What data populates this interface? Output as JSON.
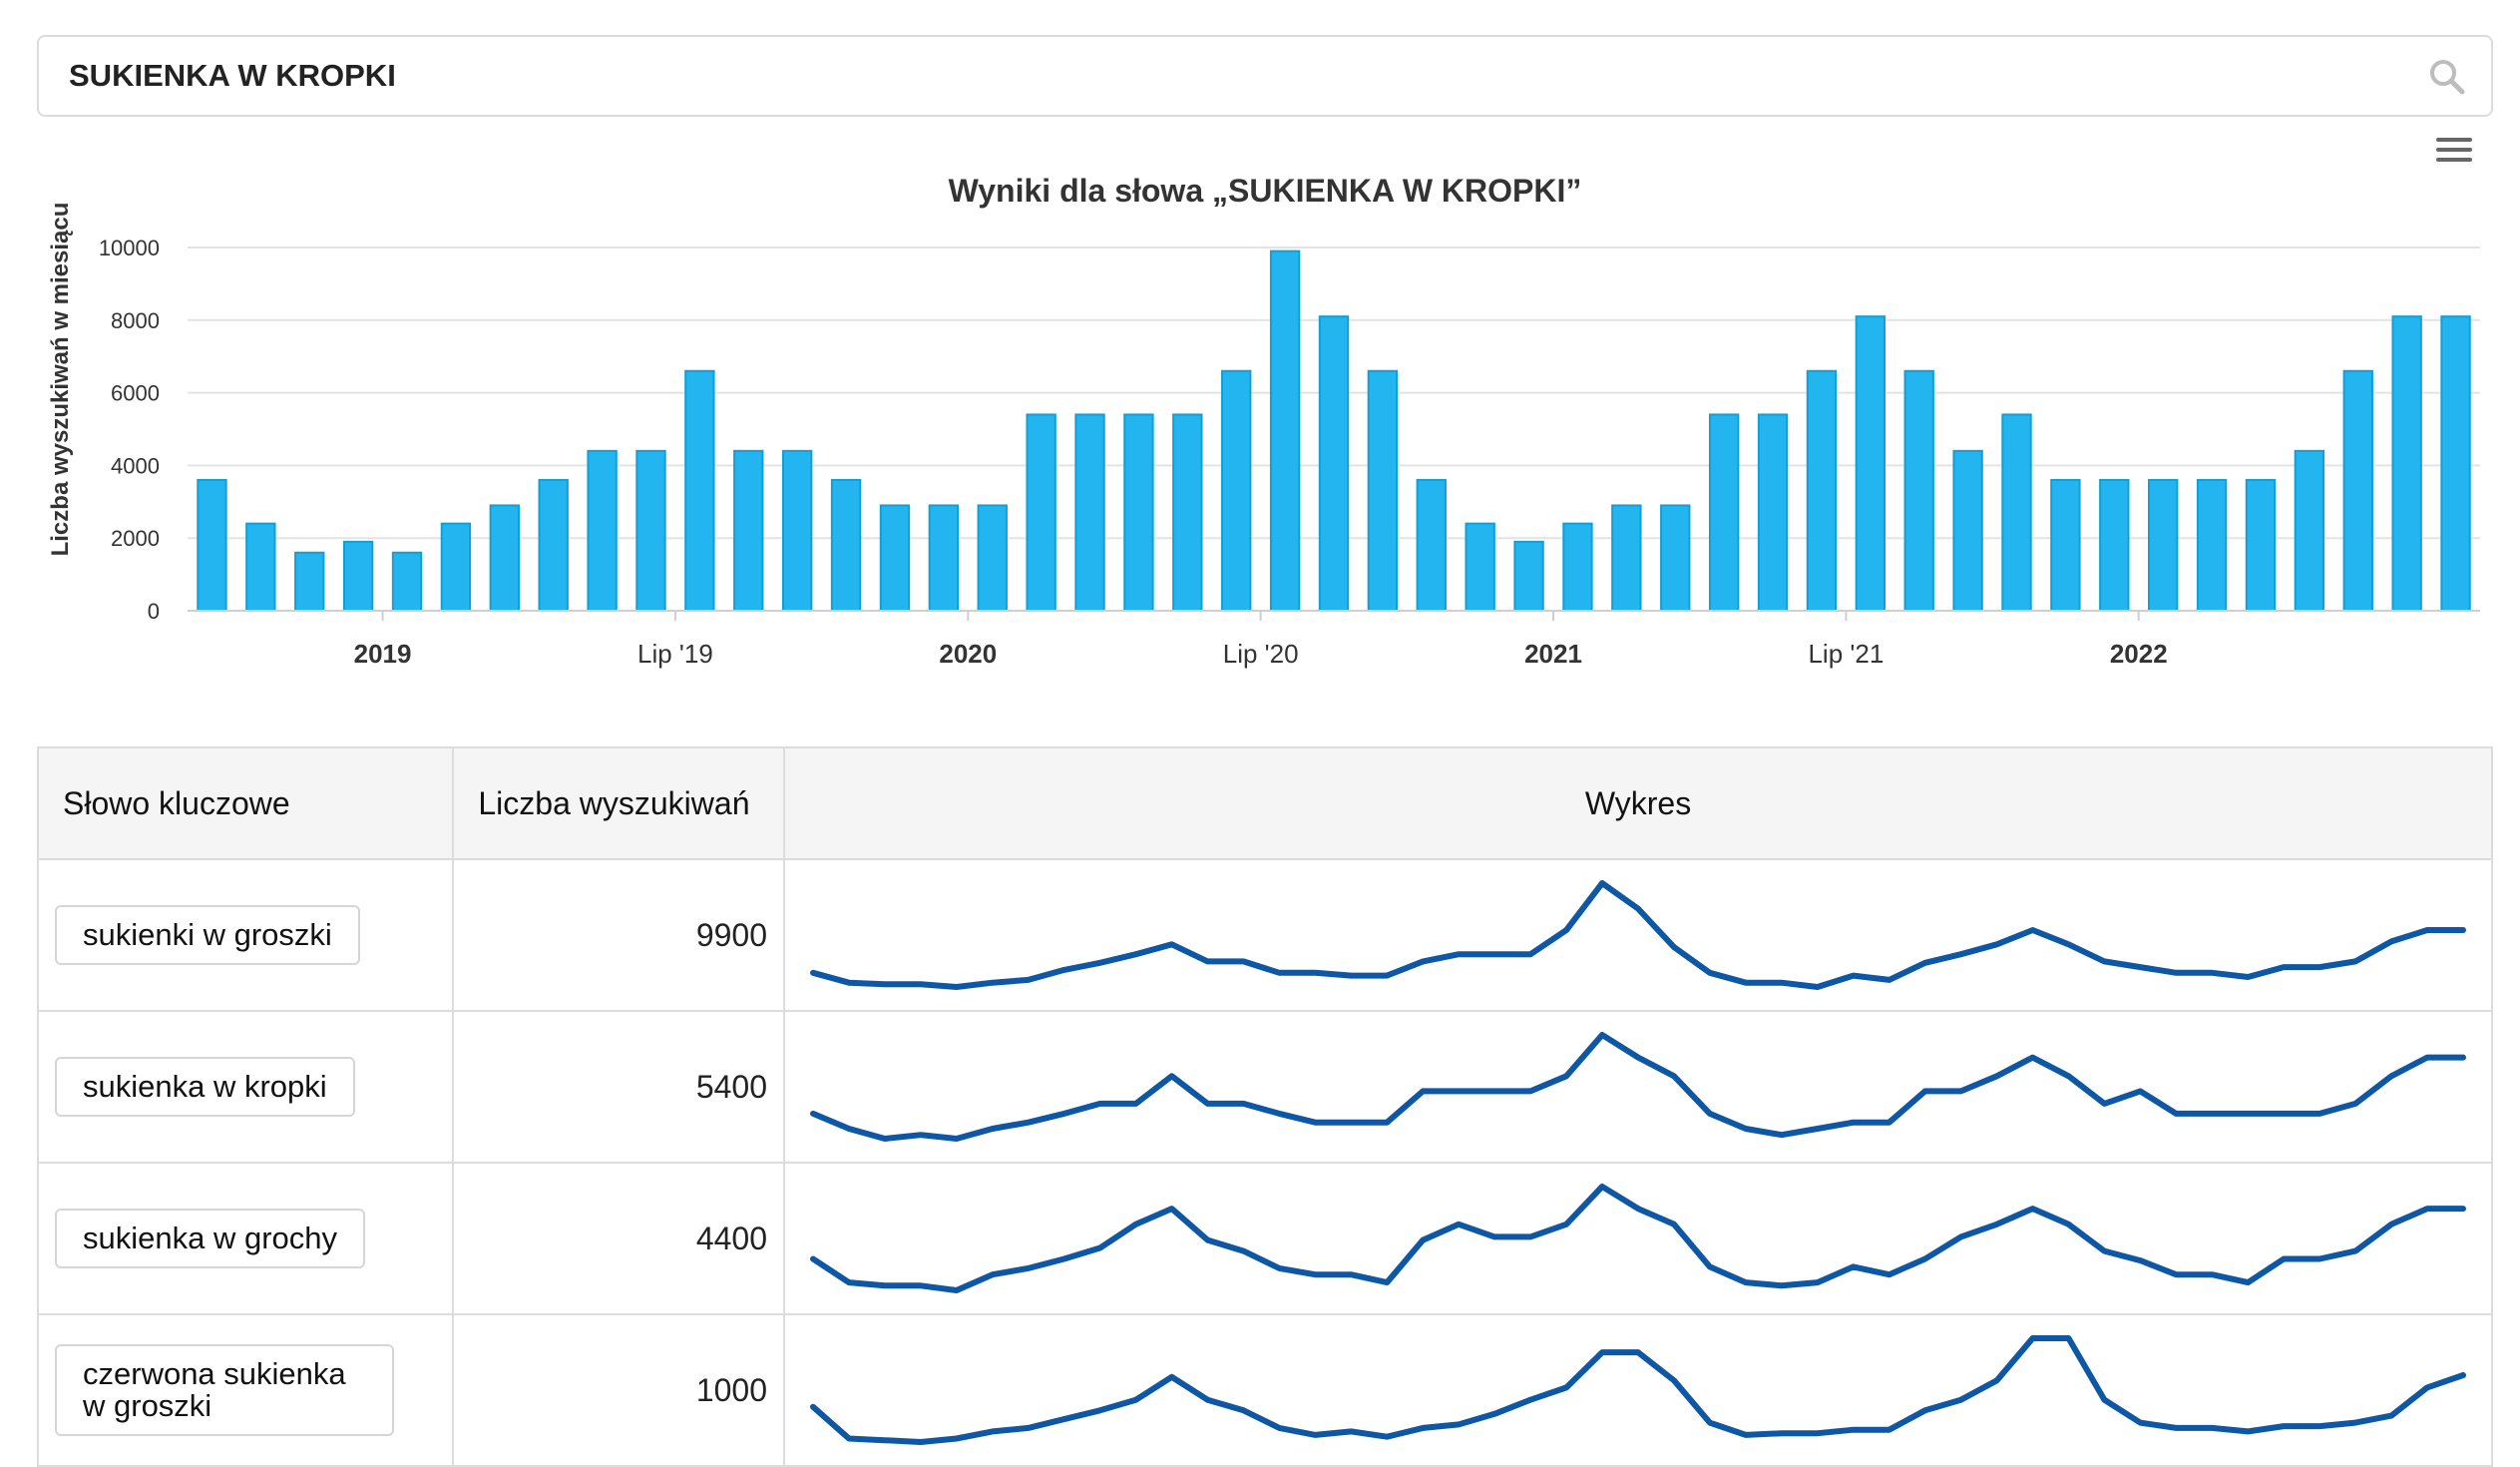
{
  "search": {
    "value": "SUKIENKA W KROPKI"
  },
  "chart_data": {
    "type": "bar",
    "title": "Wyniki dla słowa „SUKIENKA W KROPKI”",
    "ylabel": "Liczba wyszukiwań w miesiącu",
    "xlabel": "",
    "ylim": [
      0,
      10000
    ],
    "yticks": [
      0,
      2000,
      4000,
      6000,
      8000,
      10000
    ],
    "color": "#22b5f0",
    "months": [
      "2018-09",
      "2018-10",
      "2018-11",
      "2018-12",
      "2019-01",
      "2019-02",
      "2019-03",
      "2019-04",
      "2019-05",
      "2019-06",
      "2019-07",
      "2019-08",
      "2019-09",
      "2019-10",
      "2019-11",
      "2019-12",
      "2020-01",
      "2020-02",
      "2020-03",
      "2020-04",
      "2020-05",
      "2020-06",
      "2020-07",
      "2020-08",
      "2020-09",
      "2020-10",
      "2020-11",
      "2020-12",
      "2021-01",
      "2021-02",
      "2021-03",
      "2021-04",
      "2021-05",
      "2021-06",
      "2021-07",
      "2021-08",
      "2021-09",
      "2021-10",
      "2021-11",
      "2021-12",
      "2022-01",
      "2022-02",
      "2022-03",
      "2022-04",
      "2022-05",
      "2022-06",
      "2022-07"
    ],
    "values": [
      3600,
      2400,
      1600,
      1900,
      1600,
      2400,
      2900,
      3600,
      4400,
      4400,
      6600,
      4400,
      4400,
      3600,
      2900,
      2900,
      2900,
      5400,
      5400,
      5400,
      5400,
      6600,
      9900,
      8100,
      6600,
      3600,
      2400,
      1900,
      2400,
      2900,
      2900,
      5400,
      5400,
      6600,
      8100,
      6600,
      4400,
      5400,
      3600,
      3600,
      3600,
      3600,
      3600,
      4400,
      6600,
      8100,
      8100
    ],
    "xtick_labels": [
      {
        "month": "2019-01",
        "label": "2019",
        "bold": true
      },
      {
        "month": "2019-07",
        "label": "Lip '19",
        "bold": false
      },
      {
        "month": "2020-01",
        "label": "2020",
        "bold": true
      },
      {
        "month": "2020-07",
        "label": "Lip '20",
        "bold": false
      },
      {
        "month": "2021-01",
        "label": "2021",
        "bold": true
      },
      {
        "month": "2021-07",
        "label": "Lip '21",
        "bold": false
      },
      {
        "month": "2022-01",
        "label": "2022",
        "bold": true
      }
    ]
  },
  "table": {
    "headers": {
      "keyword": "Słowo kluczowe",
      "count": "Liczba wyszukiwań",
      "chart": "Wykres"
    },
    "line_color": "#0d57a5",
    "rows": [
      {
        "keyword": "sukienki w groszki",
        "count": "9900",
        "trend": [
          3600,
          2900,
          2800,
          2800,
          2600,
          2900,
          3100,
          3800,
          4300,
          4900,
          5600,
          4400,
          4400,
          3600,
          3600,
          3400,
          3400,
          4400,
          4900,
          4900,
          4900,
          6600,
          9900,
          8100,
          5400,
          3600,
          2900,
          2900,
          2600,
          3400,
          3100,
          4300,
          4900,
          5600,
          6600,
          5600,
          4400,
          4000,
          3600,
          3600,
          3300,
          4000,
          4000,
          4400,
          5800,
          6600,
          6600
        ]
      },
      {
        "keyword": "sukienka w kropki",
        "count": "5400",
        "trend": [
          3600,
          2400,
          1600,
          1900,
          1600,
          2400,
          2900,
          3600,
          4400,
          4400,
          6600,
          4400,
          4400,
          3600,
          2900,
          2900,
          2900,
          5400,
          5400,
          5400,
          5400,
          6600,
          9900,
          8100,
          6600,
          3600,
          2400,
          1900,
          2400,
          2900,
          2900,
          5400,
          5400,
          6600,
          8100,
          6600,
          4400,
          5400,
          3600,
          3600,
          3600,
          3600,
          3600,
          4400,
          6600,
          8100,
          8100
        ]
      },
      {
        "keyword": "sukienka w grochy",
        "count": "4400",
        "trend": [
          4400,
          2900,
          2700,
          2700,
          2400,
          3400,
          3800,
          4400,
          5100,
          6600,
          7600,
          5600,
          4900,
          3800,
          3400,
          3400,
          2900,
          5600,
          6600,
          5800,
          5800,
          6600,
          9000,
          7600,
          6600,
          3900,
          2900,
          2700,
          2900,
          3900,
          3400,
          4400,
          5800,
          6600,
          7600,
          6600,
          4900,
          4300,
          3400,
          3400,
          2900,
          4400,
          4400,
          4900,
          6600,
          7600,
          7600
        ]
      },
      {
        "keyword": "czerwona sukienka w groszki",
        "count": "1000",
        "trend": [
          2700,
          900,
          800,
          700,
          900,
          1300,
          1500,
          2000,
          2500,
          3100,
          4400,
          3100,
          2500,
          1500,
          1100,
          1300,
          1000,
          1500,
          1700,
          2300,
          3100,
          3800,
          5800,
          5800,
          4200,
          1800,
          1100,
          1200,
          1200,
          1400,
          1400,
          2500,
          3100,
          4200,
          6600,
          6600,
          3100,
          1800,
          1500,
          1500,
          1300,
          1600,
          1600,
          1800,
          2200,
          3800,
          4500
        ]
      }
    ]
  }
}
